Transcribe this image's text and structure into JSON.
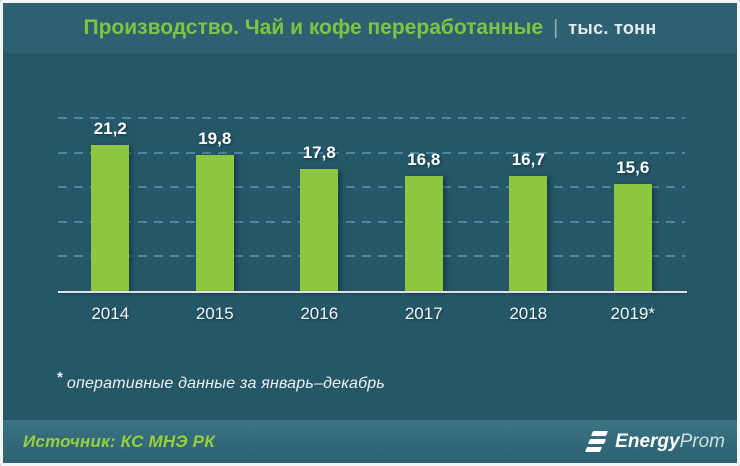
{
  "header": {
    "title": "Производство. Чай и кофе переработанные",
    "separator": "|",
    "unit": "тыс. тонн"
  },
  "chart_data": {
    "type": "bar",
    "title": "Производство. Чай и кофе переработанные",
    "ylabel": "тыс. тонн",
    "xlabel": "",
    "categories": [
      "2014",
      "2015",
      "2016",
      "2017",
      "2018",
      "2019*"
    ],
    "values": [
      21.2,
      19.8,
      17.8,
      16.8,
      16.7,
      15.6
    ],
    "value_labels": [
      "21,2",
      "19,8",
      "17,8",
      "16,8",
      "16,7",
      "15,6"
    ],
    "ylim": [
      0,
      27.3
    ],
    "gridlines": [
      5,
      10,
      15,
      20,
      25
    ],
    "grid_style": "dashed-horizontal",
    "legend": "none",
    "bar_color": "#8dc63f",
    "grid_color": "#4d8fae"
  },
  "footnote": {
    "marker": "*",
    "text": "оперативные данные за январь–декабрь"
  },
  "footer": {
    "source": "Источник: КС МНЭ РК",
    "logo": {
      "bold": "Energy",
      "light": "Prom"
    }
  },
  "colors": {
    "background": "#255767",
    "header_bg": "#2d6172",
    "footer_bg": "#336b7c",
    "accent_green": "#8dc63f",
    "title_green": "#7ec342",
    "text_white": "#ffffff",
    "axis_line": "#dce3e6"
  }
}
